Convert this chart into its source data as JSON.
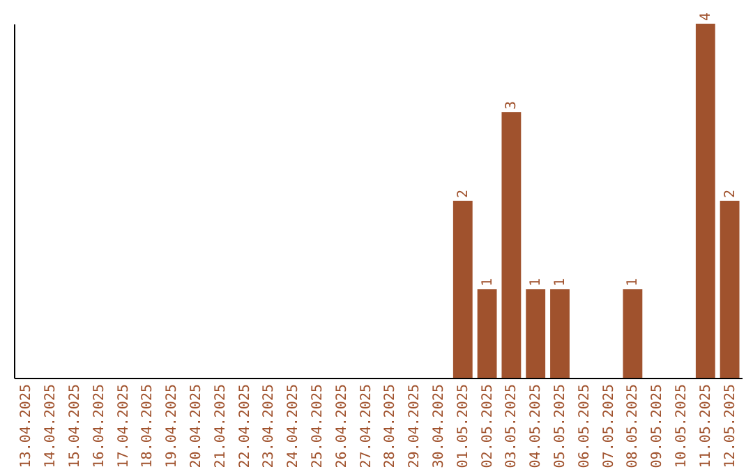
{
  "chart_data": {
    "type": "bar",
    "categories": [
      "13.04.2025",
      "14.04.2025",
      "15.04.2025",
      "16.04.2025",
      "17.04.2025",
      "18.04.2025",
      "19.04.2025",
      "20.04.2025",
      "21.04.2025",
      "22.04.2025",
      "23.04.2025",
      "24.04.2025",
      "25.04.2025",
      "26.04.2025",
      "27.04.2025",
      "28.04.2025",
      "29.04.2025",
      "30.04.2025",
      "01.05.2025",
      "02.05.2025",
      "03.05.2025",
      "04.05.2025",
      "05.05.2025",
      "06.05.2025",
      "07.05.2025",
      "08.05.2025",
      "09.05.2025",
      "10.05.2025",
      "11.05.2025",
      "12.05.2025"
    ],
    "values": [
      null,
      null,
      null,
      null,
      null,
      null,
      null,
      null,
      null,
      null,
      null,
      null,
      null,
      null,
      null,
      null,
      null,
      null,
      2,
      1,
      3,
      1,
      1,
      null,
      null,
      1,
      null,
      null,
      4,
      2
    ],
    "data_labels": true,
    "color": "#a0522d",
    "tick_labels": "x"
  }
}
